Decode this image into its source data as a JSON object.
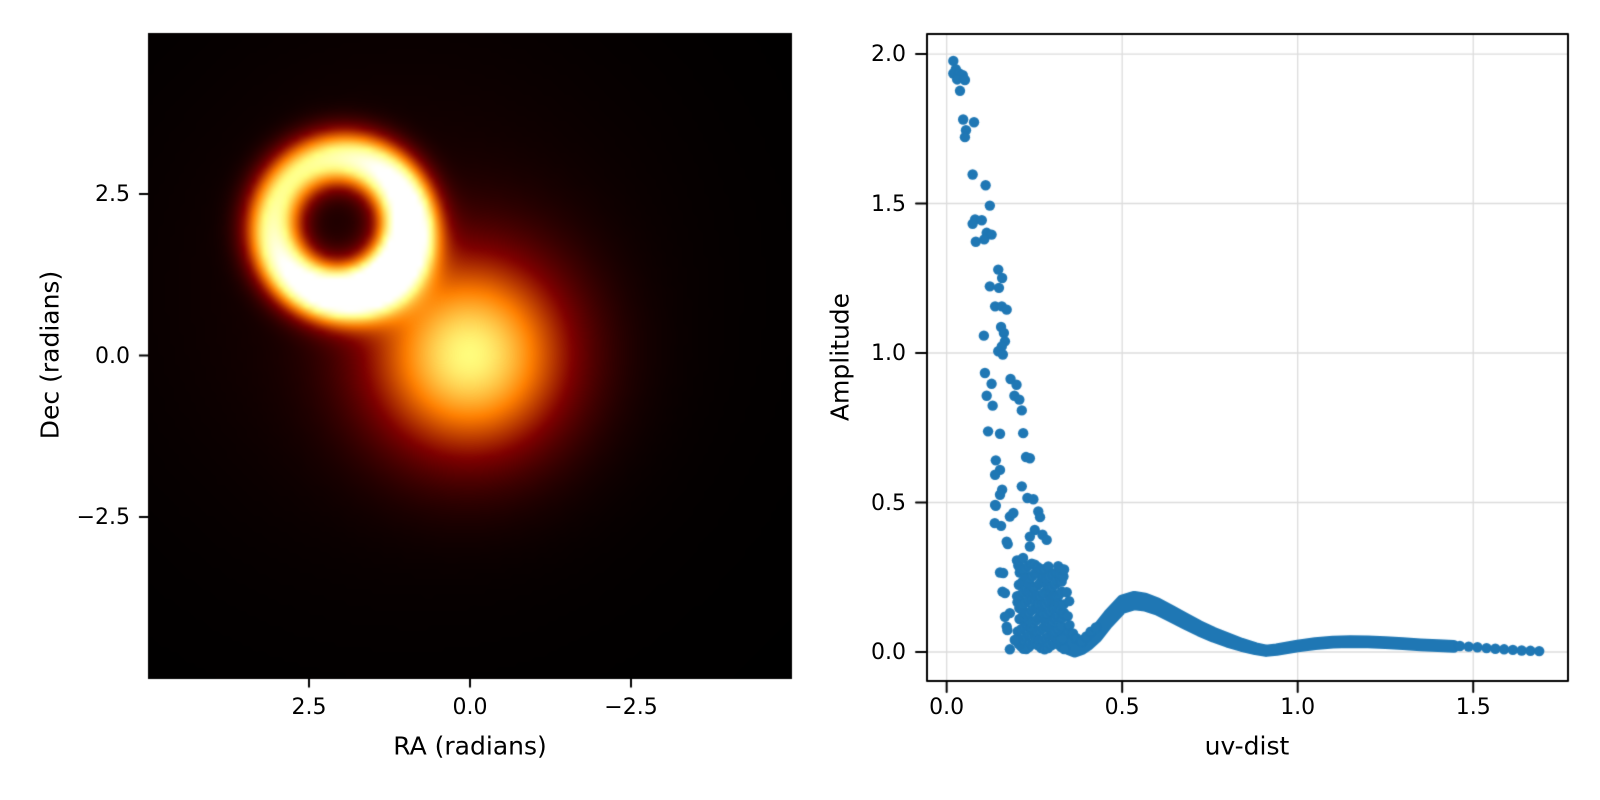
{
  "figure": {
    "background": "#ffffff"
  },
  "chart_data": [
    {
      "type": "heatmap",
      "panel": "sky-image",
      "xlabel": "RA (radians)",
      "ylabel": "Dec (radians)",
      "xlim": [
        5,
        -5
      ],
      "ylim": [
        -5,
        5
      ],
      "xticks": [
        2.5,
        0.0,
        -2.5
      ],
      "xtick_labels": [
        "2.5",
        "0.0",
        "−2.5"
      ],
      "yticks": [
        2.5,
        0.0,
        -2.5
      ],
      "ytick_labels": [
        "2.5",
        "0.0",
        "−2.5"
      ],
      "colormap": "afmhot",
      "background_color": "#000000",
      "model": {
        "ring": {
          "ra": 2.0,
          "dec": 2.0,
          "radius": 1.05,
          "width_sigma": 0.3,
          "amplitude": 1.02,
          "brightness_asymmetry": 0.27,
          "bright_side_direction_deg": 225
        },
        "gaussian": {
          "ra": 0.0,
          "dec": 0.0,
          "sigma": 1.05,
          "amplitude": 0.7
        },
        "halo": {
          "ra": 1.0,
          "dec": 1.0,
          "sigma": 2.8,
          "amplitude": 0.05
        }
      }
    },
    {
      "type": "scatter",
      "panel": "visibility-amplitude",
      "xlabel": "uv-dist",
      "ylabel": "Amplitude",
      "xlim": [
        -0.056,
        1.77
      ],
      "ylim": [
        -0.097,
        2.067
      ],
      "xticks": [
        0.0,
        0.5,
        1.0,
        1.5
      ],
      "xtick_labels": [
        "0.0",
        "0.5",
        "1.0",
        "1.5"
      ],
      "yticks": [
        0.0,
        0.5,
        1.0,
        1.5,
        2.0
      ],
      "ytick_labels": [
        "0.0",
        "0.5",
        "1.0",
        "1.5",
        "2.0"
      ],
      "grid": true,
      "grid_color": "#dcdcdc",
      "spine_color": "#000000",
      "marker_color": "#1f77b4",
      "marker_radius_px": 5.2,
      "points": [
        [
          0.019,
          1.977
        ],
        [
          0.026,
          1.949
        ],
        [
          0.019,
          1.935
        ],
        [
          0.036,
          1.935
        ],
        [
          0.046,
          1.929
        ],
        [
          0.03,
          1.915
        ],
        [
          0.052,
          1.913
        ],
        [
          0.038,
          1.877
        ],
        [
          0.047,
          1.781
        ],
        [
          0.078,
          1.772
        ],
        [
          0.055,
          1.745
        ],
        [
          0.052,
          1.722
        ],
        [
          0.074,
          1.597
        ],
        [
          0.111,
          1.561
        ],
        [
          0.123,
          1.493
        ],
        [
          0.081,
          1.447
        ],
        [
          0.1,
          1.444
        ],
        [
          0.074,
          1.432
        ],
        [
          0.114,
          1.402
        ],
        [
          0.128,
          1.396
        ],
        [
          0.107,
          1.38
        ],
        [
          0.083,
          1.372
        ],
        [
          0.147,
          1.279
        ],
        [
          0.158,
          1.251
        ],
        [
          0.123,
          1.223
        ],
        [
          0.149,
          1.218
        ],
        [
          0.138,
          1.156
        ],
        [
          0.157,
          1.156
        ],
        [
          0.171,
          1.145
        ],
        [
          0.155,
          1.087
        ],
        [
          0.163,
          1.067
        ],
        [
          0.106,
          1.058
        ],
        [
          0.166,
          1.039
        ],
        [
          0.157,
          1.022
        ],
        [
          0.147,
          1.006
        ],
        [
          0.16,
          0.995
        ],
        [
          0.109,
          0.933
        ],
        [
          0.128,
          0.897
        ],
        [
          0.114,
          0.857
        ],
        [
          0.131,
          0.824
        ],
        [
          0.118,
          0.738
        ],
        [
          0.152,
          0.73
        ],
        [
          0.14,
          0.641
        ],
        [
          0.152,
          0.609
        ],
        [
          0.158,
          0.543
        ],
        [
          0.14,
          0.489
        ],
        [
          0.18,
          0.453
        ],
        [
          0.155,
          0.422
        ],
        [
          0.174,
          0.361
        ],
        [
          0.182,
          0.913
        ],
        [
          0.199,
          0.894
        ],
        [
          0.193,
          0.857
        ],
        [
          0.207,
          0.844
        ],
        [
          0.214,
          0.808
        ],
        [
          0.218,
          0.732
        ],
        [
          0.226,
          0.652
        ],
        [
          0.237,
          0.648
        ],
        [
          0.214,
          0.554
        ],
        [
          0.23,
          0.515
        ],
        [
          0.247,
          0.511
        ],
        [
          0.261,
          0.47
        ],
        [
          0.266,
          0.451
        ],
        [
          0.251,
          0.408
        ],
        [
          0.237,
          0.386
        ],
        [
          0.273,
          0.392
        ],
        [
          0.285,
          0.375
        ],
        [
          0.138,
          0.593
        ],
        [
          0.152,
          0.526
        ],
        [
          0.138,
          0.492
        ],
        [
          0.19,
          0.465
        ],
        [
          0.137,
          0.431
        ],
        [
          0.171,
          0.369
        ],
        [
          0.237,
          0.353
        ],
        [
          0.152,
          0.266
        ],
        [
          0.161,
          0.264
        ],
        [
          0.159,
          0.202
        ],
        [
          0.166,
          0.197
        ],
        [
          0.18,
          0.13
        ],
        [
          0.166,
          0.118
        ],
        [
          0.171,
          0.085
        ],
        [
          0.173,
          0.073
        ],
        [
          0.194,
          0.04
        ],
        [
          0.18,
          0.009
        ],
        [
          0.342,
          0.2
        ],
        [
          0.349,
          0.17
        ],
        [
          0.345,
          0.12
        ],
        [
          0.35,
          0.09
        ],
        [
          0.36,
          0.062
        ],
        [
          0.37,
          0.046
        ],
        [
          0.385,
          0.035
        ],
        [
          0.398,
          0.052
        ],
        [
          0.41,
          0.068
        ],
        [
          0.425,
          0.082
        ],
        [
          1.462,
          0.02
        ],
        [
          1.487,
          0.018
        ],
        [
          1.512,
          0.016
        ],
        [
          1.538,
          0.013
        ],
        [
          1.563,
          0.011
        ],
        [
          1.588,
          0.009
        ],
        [
          1.613,
          0.007
        ],
        [
          1.638,
          0.005
        ],
        [
          1.663,
          0.004
        ],
        [
          1.688,
          0.003
        ]
      ],
      "dense_region": {
        "x0": 0.2,
        "x1": 0.335,
        "y0": 0.004,
        "y1": 0.33,
        "nx": 16,
        "ny": 11,
        "jitter_x": 0.004,
        "jitter_y": 0.01
      },
      "band": {
        "x": [
          0.325,
          0.345,
          0.365,
          0.385,
          0.405,
          0.43,
          0.46,
          0.5,
          0.535,
          0.565,
          0.6,
          0.64,
          0.68,
          0.72,
          0.76,
          0.8,
          0.84,
          0.88,
          0.91,
          0.94,
          1.0,
          1.05,
          1.1,
          1.15,
          1.2,
          1.25,
          1.3,
          1.35,
          1.4,
          1.445
        ],
        "center": [
          0.055,
          0.03,
          0.015,
          0.022,
          0.038,
          0.065,
          0.11,
          0.16,
          0.172,
          0.167,
          0.152,
          0.128,
          0.103,
          0.079,
          0.058,
          0.04,
          0.024,
          0.011,
          0.004,
          0.008,
          0.02,
          0.028,
          0.033,
          0.035,
          0.034,
          0.031,
          0.028,
          0.024,
          0.021,
          0.019
        ],
        "halfwidth": [
          0.03,
          0.022,
          0.016,
          0.015,
          0.015,
          0.015,
          0.015,
          0.015,
          0.015,
          0.014,
          0.013,
          0.012,
          0.011,
          0.01,
          0.009,
          0.008,
          0.006,
          0.004,
          0.003,
          0.003,
          0.004,
          0.004,
          0.004,
          0.004,
          0.004,
          0.004,
          0.004,
          0.004,
          0.004,
          0.004
        ]
      }
    }
  ]
}
